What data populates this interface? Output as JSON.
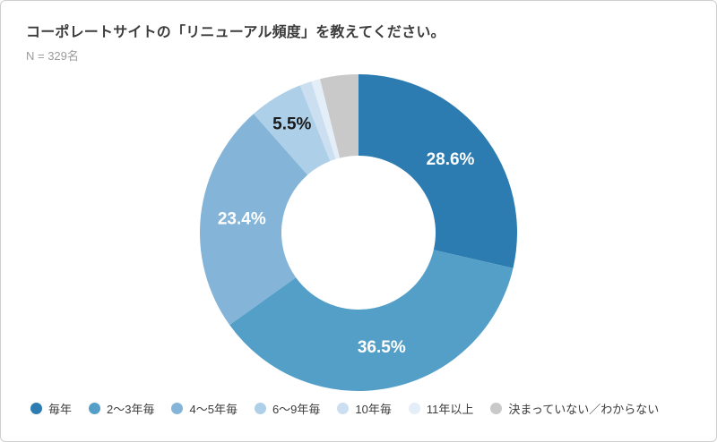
{
  "chart_data": {
    "type": "pie",
    "variant": "donut",
    "title": "コーポレートサイトの「リニューアル頻度」を教えてください。",
    "n_label": "N = 329名",
    "legend_position": "bottom",
    "start_angle_deg": 0,
    "direction": "clockwise",
    "inner_radius_ratio": 0.486,
    "segments": [
      {
        "label": "毎年",
        "value_pct": 28.6,
        "display_label": "28.6%",
        "color": "#2d7cb1",
        "label_color": "#ffffff",
        "label_r": 131
      },
      {
        "label": "2〜3年毎",
        "value_pct": 36.5,
        "display_label": "36.5%",
        "color": "#549fc8",
        "label_color": "#ffffff",
        "label_r": 131
      },
      {
        "label": "4〜5年毎",
        "value_pct": 23.4,
        "display_label": "23.4%",
        "color": "#84b5d8",
        "label_color": "#ffffff",
        "label_r": 131
      },
      {
        "label": "6〜9年毎",
        "value_pct": 5.5,
        "display_label": "5.5%",
        "color": "#adcfe8",
        "label_color": "#1a1a1a",
        "label_r": 142
      },
      {
        "label": "10年毎",
        "value_pct": 1.2,
        "display_label": "",
        "color": "#cbdff0",
        "label_color": "",
        "label_r": 0
      },
      {
        "label": "11年以上",
        "value_pct": 0.9,
        "display_label": "",
        "color": "#e3eef8",
        "label_color": "",
        "label_r": 0
      },
      {
        "label": "決まっていない／わからない",
        "value_pct": 3.9,
        "display_label": "",
        "color": "#c9c9c9",
        "label_color": "",
        "label_r": 0
      }
    ]
  }
}
